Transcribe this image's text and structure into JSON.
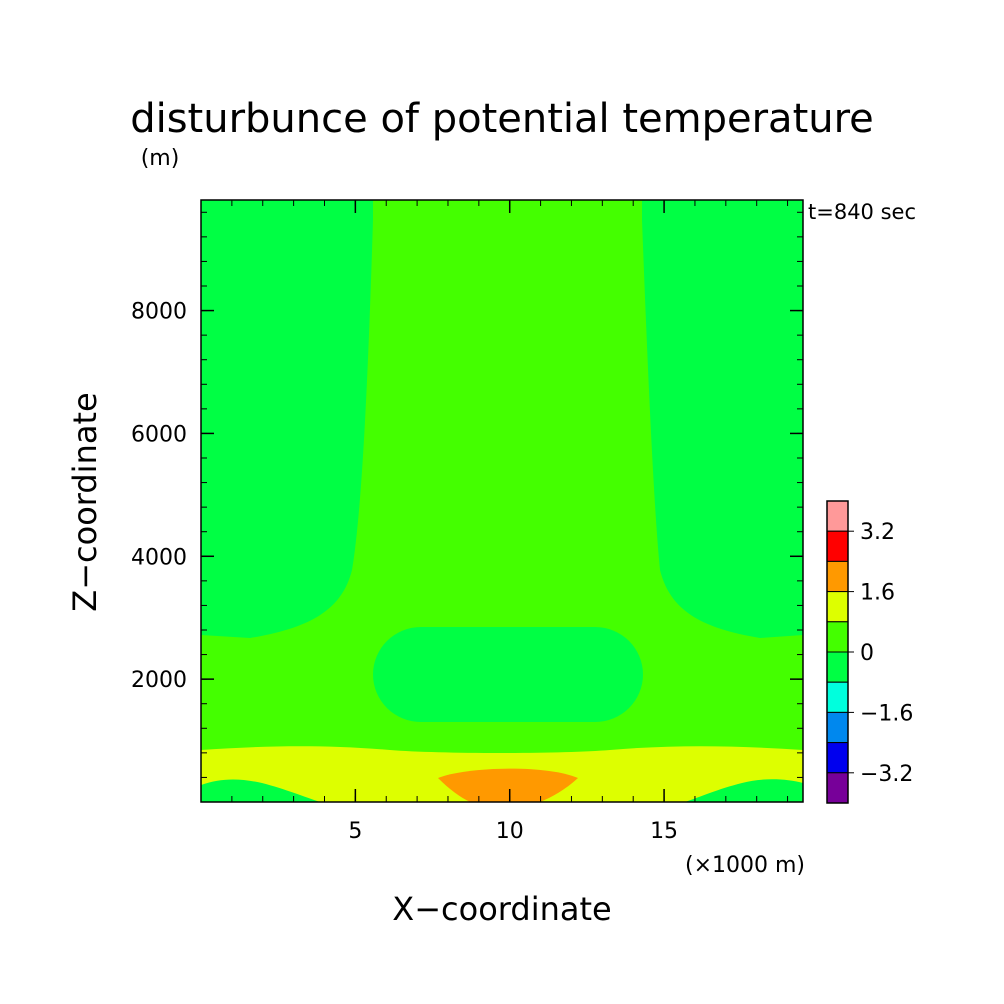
{
  "chart_data": {
    "type": "heatmap",
    "title": "disturbunce of potential temperature",
    "unit": "(m)",
    "time_label": "t=840 sec",
    "xlabel": "X−coordinate",
    "ylabel": "Z−coordinate",
    "x_multiplier_label": "(×1000 m)",
    "xlim": [
      0,
      19.5
    ],
    "ylim": [
      0,
      9800
    ],
    "x_ticks": [
      {
        "value": 5,
        "label": "5"
      },
      {
        "value": 10,
        "label": "10"
      },
      {
        "value": 15,
        "label": "15"
      }
    ],
    "y_ticks": [
      {
        "value": 2000,
        "label": "2000"
      },
      {
        "value": 4000,
        "label": "4000"
      },
      {
        "value": 6000,
        "label": "6000"
      },
      {
        "value": 8000,
        "label": "8000"
      }
    ],
    "colorbar": {
      "levels": [
        {
          "color": "#ff9999"
        },
        {
          "color": "#ff0000"
        },
        {
          "color": "#ff9900"
        },
        {
          "color": "#ddff00"
        },
        {
          "color": "#44ff00"
        },
        {
          "color": "#00ff44"
        },
        {
          "color": "#00ffdd"
        },
        {
          "color": "#0088ee"
        },
        {
          "color": "#0000ee"
        },
        {
          "color": "#770099"
        }
      ],
      "labels": [
        {
          "text": "3.2",
          "boundary": 1
        },
        {
          "text": "1.6",
          "boundary": 3
        },
        {
          "text": "0",
          "boundary": 5
        },
        {
          "text": "−1.6",
          "boundary": 7
        },
        {
          "text": "−3.2",
          "boundary": 9
        }
      ]
    },
    "regions": [
      {
        "name": "background",
        "level": "0 to 0.8",
        "color": "#44ff00"
      },
      {
        "name": "upper-left",
        "level": "-0.8 to 0",
        "color": "#00ff44"
      },
      {
        "name": "upper-right",
        "level": "-0.8 to 0",
        "color": "#00ff44"
      },
      {
        "name": "mid-cell",
        "level": "-0.8 to 0",
        "color": "#00ff44"
      },
      {
        "name": "bottom-corner-left",
        "level": "-0.8 to 0",
        "color": "#00ff44"
      },
      {
        "name": "bottom-corner-right",
        "level": "-0.8 to 0",
        "color": "#00ff44"
      },
      {
        "name": "low-band",
        "level": "0.8 to 1.6",
        "color": "#ddff00"
      },
      {
        "name": "warm-core",
        "level": "1.6 to 2.4",
        "color": "#ff9900"
      }
    ],
    "grid": false
  }
}
